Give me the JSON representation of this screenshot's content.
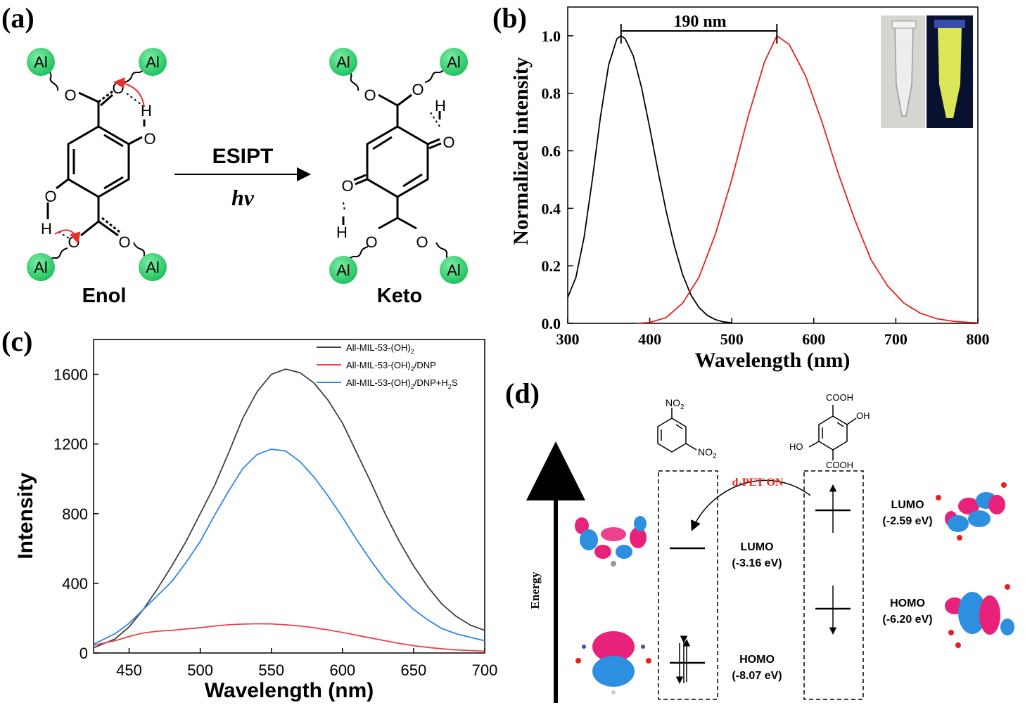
{
  "figure": {
    "panel_labels": [
      "(a)",
      "(b)",
      "(c)",
      "(d)"
    ]
  },
  "panel_a": {
    "atom_al": "Al",
    "atom_o": "O",
    "atom_h": "H",
    "arrow_top": "ESIPT",
    "arrow_bottom": "hν",
    "enol_label": "Enol",
    "keto_label": "Keto",
    "colors": {
      "al": "#2ed36a",
      "arrow": "#e5302c"
    }
  },
  "panel_b": {
    "annotation": "190 nm",
    "chart_data": {
      "type": "line",
      "xlabel": "Wavelength (nm)",
      "ylabel": "Normalized intensity",
      "xlim": [
        300,
        800
      ],
      "ylim": [
        0,
        1.1
      ],
      "xticks": [
        300,
        400,
        500,
        600,
        700,
        800
      ],
      "yticks": [
        0.0,
        0.2,
        0.4,
        0.6,
        0.8,
        1.0
      ],
      "ytick_labels": [
        "0.0",
        "0.2",
        "0.4",
        "0.6",
        "0.8",
        "1.0"
      ],
      "series": [
        {
          "color": "#000000",
          "x": [
            300,
            310,
            320,
            330,
            340,
            350,
            360,
            365,
            370,
            380,
            390,
            400,
            410,
            420,
            430,
            440,
            450,
            460,
            470,
            480,
            490,
            500
          ],
          "y": [
            0.09,
            0.16,
            0.3,
            0.5,
            0.72,
            0.9,
            0.99,
            1.0,
            0.99,
            0.93,
            0.82,
            0.68,
            0.53,
            0.39,
            0.27,
            0.17,
            0.1,
            0.055,
            0.028,
            0.013,
            0.005,
            0.002
          ]
        },
        {
          "color": "#e8201c",
          "x": [
            385,
            400,
            420,
            440,
            460,
            480,
            500,
            520,
            540,
            555,
            570,
            590,
            610,
            630,
            650,
            670,
            690,
            710,
            730,
            750,
            770,
            790,
            800
          ],
          "y": [
            0.0,
            0.003,
            0.02,
            0.07,
            0.16,
            0.31,
            0.5,
            0.72,
            0.91,
            1.0,
            0.97,
            0.86,
            0.7,
            0.52,
            0.36,
            0.22,
            0.13,
            0.07,
            0.035,
            0.016,
            0.007,
            0.003,
            0.002
          ]
        }
      ]
    }
  },
  "panel_c": {
    "chart_data": {
      "type": "line",
      "xlabel": "Wavelength (nm)",
      "ylabel": "Intensity",
      "xlim": [
        425,
        700
      ],
      "ylim": [
        0,
        1800
      ],
      "xticks": [
        450,
        500,
        550,
        600,
        650,
        700
      ],
      "yticks": [
        0,
        400,
        800,
        1200,
        1600
      ],
      "series": [
        {
          "name": "All-MIL-53-(OH)2",
          "color": "#404040",
          "x": [
            425,
            440,
            450,
            460,
            470,
            480,
            490,
            500,
            510,
            520,
            530,
            540,
            550,
            560,
            570,
            580,
            590,
            600,
            610,
            620,
            630,
            640,
            650,
            660,
            670,
            680,
            690,
            700
          ],
          "y": [
            30,
            80,
            150,
            250,
            370,
            500,
            640,
            800,
            960,
            1150,
            1350,
            1500,
            1600,
            1630,
            1610,
            1550,
            1450,
            1320,
            1150,
            980,
            800,
            640,
            500,
            380,
            280,
            210,
            160,
            130
          ]
        },
        {
          "name": "All-MIL-53-(OH)2/DNP",
          "color": "#e8434a",
          "x": [
            425,
            440,
            450,
            460,
            470,
            480,
            490,
            500,
            510,
            520,
            530,
            540,
            550,
            560,
            570,
            580,
            590,
            600,
            610,
            620,
            630,
            640,
            650,
            660,
            670,
            680,
            690,
            700
          ],
          "y": [
            45,
            70,
            95,
            115,
            125,
            130,
            138,
            145,
            155,
            162,
            166,
            168,
            167,
            162,
            155,
            145,
            132,
            118,
            102,
            86,
            70,
            55,
            42,
            32,
            24,
            18,
            14,
            10
          ]
        },
        {
          "name": "All-MIL-53-(OH)2/DNP+H2S",
          "color": "#2e86e8",
          "x": [
            425,
            440,
            450,
            460,
            470,
            480,
            490,
            500,
            510,
            520,
            530,
            540,
            550,
            560,
            570,
            580,
            590,
            600,
            610,
            620,
            630,
            640,
            650,
            660,
            670,
            680,
            690,
            700
          ],
          "y": [
            50,
            110,
            170,
            250,
            330,
            410,
            520,
            640,
            790,
            930,
            1060,
            1140,
            1170,
            1160,
            1100,
            1010,
            900,
            780,
            650,
            530,
            420,
            330,
            250,
            190,
            140,
            110,
            90,
            70
          ]
        }
      ]
    },
    "legend": [
      {
        "base": "All-MIL-53-(OH)",
        "sub": "2",
        "tail": "",
        "sub2": "",
        "end": ""
      },
      {
        "base": "All-MIL-53-(OH)",
        "sub": "2",
        "tail": "/DNP",
        "sub2": "",
        "end": ""
      },
      {
        "base": "All-MIL-53-(OH)",
        "sub": "2",
        "tail": "/DNP+H",
        "sub2": "2",
        "end": "S"
      }
    ]
  },
  "panel_d": {
    "energy_label": "Energy",
    "dpet_label": "d-PET ON",
    "dnp_lumo": "LUMO",
    "dnp_lumo_val": "(-3.16 eV)",
    "dnp_homo": "HOMO",
    "dnp_homo_val": "(-8.07 eV)",
    "lig_lumo": "LUMO",
    "lig_lumo_val": "(-2.59 eV)",
    "lig_homo": "HOMO",
    "lig_homo_val": "(-6.20 eV)",
    "no2": "NO",
    "no2_sub": "2",
    "cooh": "COOH",
    "oh": "OH",
    "ho": "HO",
    "colors": {
      "pos": "#e8217a",
      "neg": "#2d8fe0",
      "dpet": "#e8201c"
    }
  }
}
